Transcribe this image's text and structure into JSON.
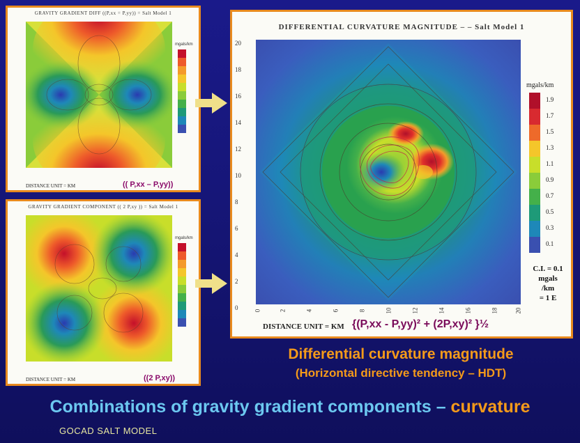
{
  "panels": {
    "top_left": {
      "title": "GRAVITY GRADIENT DIFF ((P,xx = P,yy)) = Salt Model 1",
      "formula": "(( P,xx – P,yy))",
      "distance_label": "DISTANCE UNIT = KM",
      "legend_unit": "mgals/km"
    },
    "bottom_left": {
      "title": "GRAVITY GRADIENT COMPONENT (( 2 P,xy )) = Salt Model 1",
      "formula": "((2 P,xy))",
      "distance_label": "DISTANCE UNIT = KM",
      "legend_unit": "mgals/km"
    },
    "main": {
      "title": "DIFFERENTIAL CURVATURE MAGNITUDE – – Salt Model 1",
      "distance_label": "DISTANCE UNIT = KM",
      "formula": "{(P,xx - P,yy)² + (2P,xy)² }½",
      "legend_unit": "mgals/km",
      "legend_values": [
        "1.9",
        "1.7",
        "1.5",
        "1.3",
        "1.1",
        "0.9",
        "0.7",
        "0.5",
        "0.3",
        "0.1"
      ],
      "legend_colors": [
        "#b0102a",
        "#d82a30",
        "#ee6a2a",
        "#f4c62a",
        "#c8de2a",
        "#8acc3a",
        "#44b04a",
        "#1e9a78",
        "#1e88b8",
        "#3a50b0"
      ],
      "y_ticks": [
        "20",
        "18",
        "16",
        "14",
        "12",
        "10",
        "8",
        "6",
        "4",
        "2",
        "0"
      ],
      "x_ticks": [
        "0",
        "2",
        "4",
        "6",
        "8",
        "10",
        "12",
        "14",
        "16",
        "18",
        "20"
      ],
      "ci_lines": [
        "C.I. = 0.1",
        "mgals",
        "/km",
        "= 1 E"
      ]
    }
  },
  "captions": {
    "line1": "Differential curvature magnitude",
    "line2": "(Horizontal directive tendency – HDT)"
  },
  "bottom_title": {
    "part1": "Combinations of gravity gradient components – ",
    "part2": "curvature",
    "color1": "#6cc8f0",
    "color2": "#f49a1a"
  },
  "footer": "GOCAD SALT MODEL"
}
